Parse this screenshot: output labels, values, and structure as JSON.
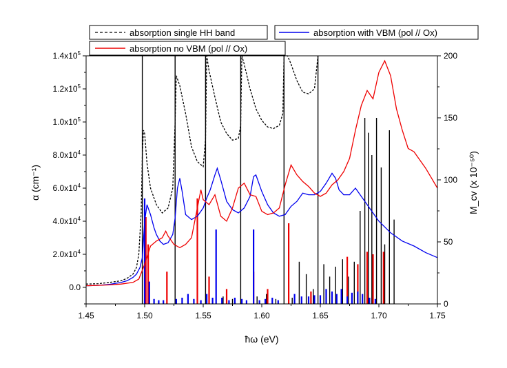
{
  "chart_data": {
    "type": "line",
    "xlabel": "ħω (eV)",
    "ylabel": "α (cm⁻¹)",
    "y2label": "M_cv (x 10⁻⁵⁰)",
    "xlim": [
      1.45,
      1.75
    ],
    "ylim": [
      -10000,
      140000
    ],
    "y2lim": [
      0,
      200
    ],
    "grid": false,
    "x_ticks": [
      1.45,
      1.5,
      1.55,
      1.6,
      1.65,
      1.7,
      1.75
    ],
    "x_tick_labels": [
      "1.45",
      "1.50",
      "1.55",
      "1.60",
      "1.65",
      "1.70",
      "1.75"
    ],
    "y_ticks": [
      0,
      20000,
      40000,
      60000,
      80000,
      100000,
      120000,
      140000
    ],
    "y_tick_labels": [
      {
        "mantissa": "0.0",
        "exp": ""
      },
      {
        "mantissa": "2.0x10",
        "exp": "4"
      },
      {
        "mantissa": "4.0x10",
        "exp": "4"
      },
      {
        "mantissa": "6.0x10",
        "exp": "4"
      },
      {
        "mantissa": "8.0x10",
        "exp": "4"
      },
      {
        "mantissa": "1.0x10",
        "exp": "5"
      },
      {
        "mantissa": "1.2x10",
        "exp": "5"
      },
      {
        "mantissa": "1.4x10",
        "exp": "5"
      }
    ],
    "y2_ticks": [
      0,
      50,
      100,
      150,
      200
    ],
    "y2_tick_labels": [
      "0",
      "50",
      "100",
      "150",
      "200"
    ],
    "legend": {
      "placement": "top",
      "entries": [
        {
          "name": "absorption single HH band",
          "color": "#000000",
          "dash": true
        },
        {
          "name": "absorption with VBM (pol // Ox)",
          "color": "#0000ee",
          "dash": false
        },
        {
          "name": "absorption no VBM (pol // Ox)",
          "color": "#ee0000",
          "dash": false
        }
      ]
    },
    "series": [
      {
        "name": "absorption single HH band",
        "axis": "left",
        "color": "#000000",
        "style": "dashed",
        "x": [
          1.45,
          1.46,
          1.47,
          1.48,
          1.485,
          1.49,
          1.493,
          1.495,
          1.497,
          1.498,
          1.499,
          1.5,
          1.502,
          1.505,
          1.51,
          1.515,
          1.52,
          1.524,
          1.526,
          1.527,
          1.53,
          1.535,
          1.54,
          1.545,
          1.55,
          1.552,
          1.553,
          1.555,
          1.56,
          1.565,
          1.57,
          1.575,
          1.58,
          1.582,
          1.583,
          1.585,
          1.59,
          1.595,
          1.6,
          1.605,
          1.61,
          1.615,
          1.618,
          1.619,
          1.622,
          1.625,
          1.63,
          1.635,
          1.64,
          1.645,
          1.648
        ],
        "y": [
          2000,
          2200,
          3000,
          4000,
          5500,
          8000,
          12000,
          20000,
          45000,
          80000,
          95000,
          93000,
          75000,
          60000,
          50000,
          45000,
          48000,
          60000,
          100000,
          128000,
          122000,
          105000,
          85000,
          76000,
          73000,
          90000,
          140000,
          131000,
          115000,
          100000,
          93000,
          89000,
          90000,
          98000,
          140000,
          135000,
          120000,
          108000,
          101000,
          97000,
          96000,
          98000,
          105000,
          140000,
          140000,
          135000,
          125000,
          118000,
          117000,
          120000,
          140000
        ]
      },
      {
        "name": "absorption with VBM (pol // Ox)",
        "axis": "left",
        "color": "#0000ee",
        "style": "solid",
        "x": [
          1.45,
          1.46,
          1.47,
          1.48,
          1.485,
          1.49,
          1.493,
          1.496,
          1.498,
          1.5,
          1.502,
          1.505,
          1.508,
          1.51,
          1.513,
          1.516,
          1.52,
          1.524,
          1.526,
          1.528,
          1.53,
          1.532,
          1.535,
          1.54,
          1.545,
          1.55,
          1.553,
          1.556,
          1.56,
          1.562,
          1.565,
          1.57,
          1.575,
          1.58,
          1.585,
          1.59,
          1.593,
          1.595,
          1.6,
          1.605,
          1.61,
          1.615,
          1.62,
          1.625,
          1.63,
          1.635,
          1.64,
          1.645,
          1.65,
          1.655,
          1.66,
          1.663,
          1.666,
          1.67,
          1.675,
          1.68,
          1.685,
          1.69,
          1.7,
          1.71,
          1.72,
          1.73,
          1.74,
          1.75
        ],
        "y": [
          1000,
          1200,
          1800,
          3000,
          4000,
          6000,
          8000,
          12000,
          18000,
          40000,
          50000,
          44000,
          36000,
          32000,
          28000,
          26000,
          27000,
          32000,
          42000,
          60000,
          66000,
          58000,
          44000,
          41000,
          43000,
          48000,
          54000,
          59000,
          68000,
          72000,
          65000,
          52000,
          47000,
          45000,
          48000,
          55000,
          67000,
          68000,
          58000,
          50000,
          45000,
          43000,
          44000,
          49000,
          52000,
          57000,
          56000,
          56000,
          58000,
          63000,
          69000,
          66000,
          59000,
          56000,
          56000,
          60000,
          55000,
          50000,
          40000,
          33000,
          28000,
          25000,
          21000,
          18000
        ]
      },
      {
        "name": "absorption no VBM (pol // Ox)",
        "axis": "left",
        "color": "#ee0000",
        "style": "solid",
        "x": [
          1.45,
          1.46,
          1.47,
          1.48,
          1.49,
          1.495,
          1.5,
          1.505,
          1.51,
          1.515,
          1.518,
          1.52,
          1.525,
          1.53,
          1.535,
          1.54,
          1.545,
          1.548,
          1.55,
          1.555,
          1.56,
          1.565,
          1.57,
          1.575,
          1.58,
          1.585,
          1.59,
          1.595,
          1.6,
          1.605,
          1.61,
          1.615,
          1.62,
          1.625,
          1.63,
          1.635,
          1.64,
          1.645,
          1.65,
          1.655,
          1.66,
          1.665,
          1.67,
          1.675,
          1.68,
          1.685,
          1.69,
          1.695,
          1.7,
          1.705,
          1.71,
          1.715,
          1.72,
          1.725,
          1.73,
          1.735,
          1.74,
          1.745,
          1.75
        ],
        "y": [
          1000,
          1200,
          1500,
          2000,
          3000,
          5000,
          14000,
          25000,
          28000,
          30000,
          34000,
          31000,
          26000,
          24000,
          26000,
          30000,
          48000,
          59000,
          53000,
          50000,
          56000,
          43000,
          40000,
          48000,
          60000,
          63000,
          56000,
          55000,
          46000,
          44000,
          45000,
          48000,
          62000,
          74000,
          68000,
          64000,
          61000,
          57000,
          55000,
          57000,
          62000,
          65000,
          70000,
          78000,
          95000,
          110000,
          119000,
          114000,
          130000,
          137000,
          128000,
          108000,
          95000,
          84000,
          82000,
          77000,
          72000,
          66000,
          60000
        ]
      }
    ],
    "bars": [
      {
        "name": "M_cv (no VBM)",
        "axis": "right",
        "color": "#ee0000",
        "x": [
          1.501,
          1.503,
          1.519,
          1.545,
          1.555,
          1.57,
          1.593,
          1.605,
          1.623,
          1.642,
          1.673,
          1.682,
          1.69,
          1.695,
          1.704
        ],
        "y": [
          70,
          48,
          26,
          85,
          22,
          12,
          26,
          12,
          65,
          10,
          38,
          32,
          42,
          40,
          42
        ]
      },
      {
        "name": "M_cv (with VBM)",
        "axis": "right",
        "color": "#0000ee",
        "x": [
          1.5,
          1.504,
          1.508,
          1.512,
          1.516,
          1.527,
          1.532,
          1.537,
          1.542,
          1.548,
          1.553,
          1.558,
          1.561,
          1.566,
          1.572,
          1.577,
          1.583,
          1.587,
          1.593,
          1.598,
          1.603,
          1.609,
          1.614,
          1.628,
          1.634,
          1.64,
          1.645,
          1.65,
          1.655,
          1.66,
          1.664,
          1.668,
          1.673,
          1.677,
          1.682,
          1.686,
          1.692,
          1.697
        ],
        "y": [
          85,
          18,
          4,
          3,
          3,
          4,
          5,
          8,
          4,
          3,
          8,
          5,
          60,
          5,
          3,
          5,
          4,
          3,
          60,
          3,
          4,
          5,
          3,
          8,
          6,
          6,
          7,
          7,
          12,
          10,
          8,
          12,
          6,
          9,
          10,
          8,
          5,
          4
        ]
      },
      {
        "name": "M_cv (single HH band)",
        "axis": "right",
        "color": "#000000",
        "x": [
          1.498,
          1.526,
          1.552,
          1.582,
          1.619,
          1.648,
          1.612,
          1.626,
          1.632,
          1.638,
          1.644,
          1.653,
          1.658,
          1.663,
          1.669,
          1.674,
          1.679,
          1.684,
          1.688,
          1.691,
          1.694,
          1.698,
          1.702,
          1.705,
          1.709,
          1.713,
          1.604,
          1.596,
          1.575,
          1.567
        ],
        "y": [
          200,
          200,
          200,
          200,
          200,
          200,
          4,
          5,
          34,
          24,
          12,
          32,
          22,
          30,
          36,
          22,
          34,
          75,
          150,
          138,
          120,
          150,
          110,
          48,
          140,
          68,
          8,
          6,
          4,
          6
        ]
      }
    ]
  }
}
